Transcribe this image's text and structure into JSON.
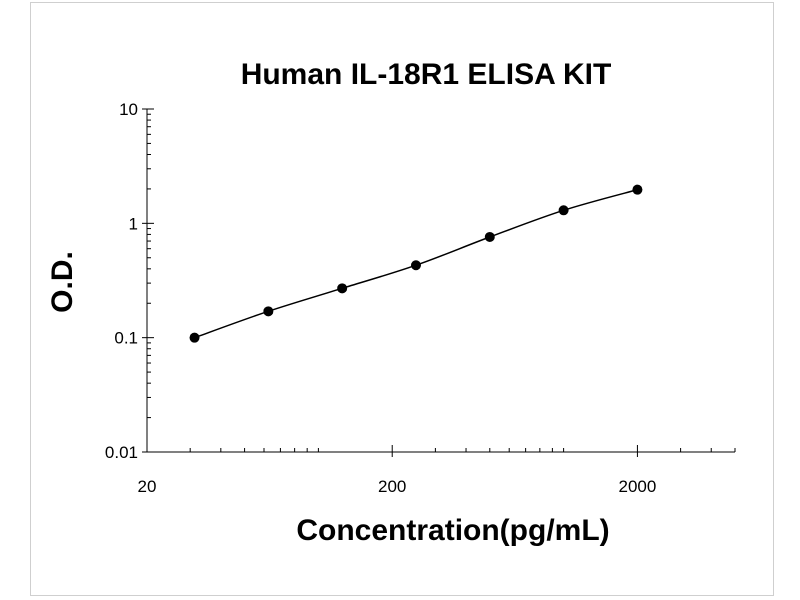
{
  "chart_data": {
    "type": "scatter",
    "title": "Human IL-18R1 ELISA KIT",
    "xlabel": "Concentration(pg/mL)",
    "ylabel": "O.D.",
    "x_scale": "log",
    "y_scale": "log",
    "xlim": [
      20,
      5000
    ],
    "ylim": [
      0.01,
      10
    ],
    "x_ticks": [
      20,
      200,
      2000
    ],
    "x_tick_labels": [
      "20",
      "200",
      "2000"
    ],
    "y_ticks": [
      0.01,
      0.1,
      1,
      10
    ],
    "y_tick_labels": [
      "0.01",
      "0.1",
      "1",
      "10"
    ],
    "grid": false,
    "legend": "none",
    "series": [
      {
        "x": [
          31.25,
          62.5,
          125,
          250,
          500,
          1000,
          2000
        ],
        "y": [
          0.1,
          0.17,
          0.27,
          0.43,
          0.76,
          1.3,
          1.97
        ],
        "marker": "circle",
        "fit_line": true,
        "color": "#000000"
      }
    ]
  }
}
